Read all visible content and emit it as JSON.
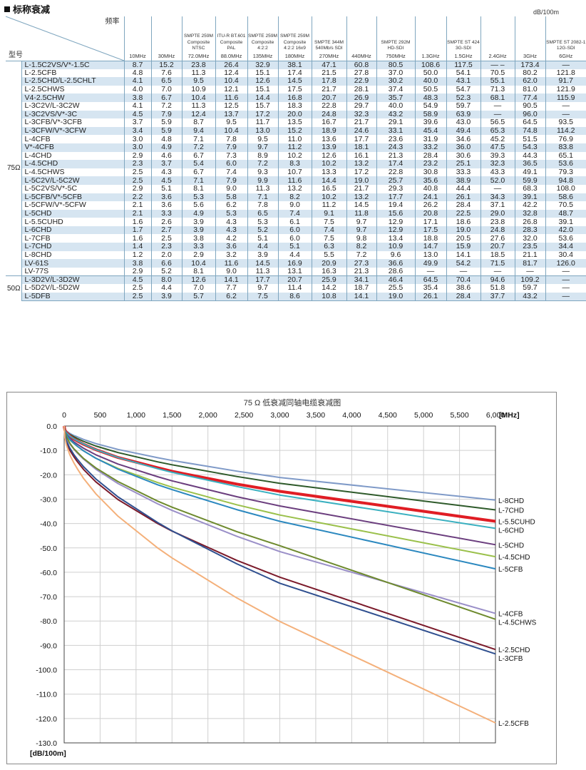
{
  "header": {
    "title": "标称衰减",
    "unit": "dB/100m"
  },
  "table": {
    "corner_top": "频率",
    "corner_bottom": "型号",
    "columns": [
      {
        "standard": "",
        "freq": "10MHz"
      },
      {
        "standard": "",
        "freq": "30MHz"
      },
      {
        "standard": "SMPTE 259M Composite NTSC",
        "freq": "72.0MHz"
      },
      {
        "standard": "ITU-R BT.601 Composite PAL",
        "freq": "88.0MHz"
      },
      {
        "standard": "SMPTE 259M Composite 4:2:2",
        "freq": "135MHz"
      },
      {
        "standard": "SMPTE 259M Composite 4:2:2 16x9",
        "freq": "180MHz"
      },
      {
        "standard": "SMPTE 344M 540Mb/s SDI",
        "freq": "270MHz"
      },
      {
        "standard": "",
        "freq": "440MHz"
      },
      {
        "standard": "SMPTE 292M HD-SDI",
        "freq": "750MHz"
      },
      {
        "standard": "",
        "freq": "1.3GHz"
      },
      {
        "standard": "SMPTE ST 424 3G-SDI",
        "freq": "1.5GHz"
      },
      {
        "standard": "",
        "freq": "2.4GHz"
      },
      {
        "standard": "",
        "freq": "3GHz"
      },
      {
        "standard": "SMPTE ST 2082-1 12G-SDI",
        "freq": "6GHz"
      }
    ],
    "groups": [
      {
        "impedance": "75Ω",
        "rows": [
          {
            "model": "L-1.5C2VS/V*-1.5C",
            "values": [
              "8.7",
              "15.2",
              "23.8",
              "26.4",
              "32.9",
              "38.1",
              "47.1",
              "60.8",
              "80.5",
              "108.6",
              "117.5",
              "— –",
              "173.4",
              "—"
            ]
          },
          {
            "model": "L-2.5CFB",
            "values": [
              "4.8",
              "7.6",
              "11.3",
              "12.4",
              "15.1",
              "17.4",
              "21.5",
              "27.8",
              "37.0",
              "50.0",
              "54.1",
              "70.5",
              "80.2",
              "121.8"
            ]
          },
          {
            "model": "L-2.5CHD/L-2.5CHLT",
            "values": [
              "4.1",
              "6.5",
              "9.5",
              "10.4",
              "12.6",
              "14.5",
              "17.8",
              "22.9",
              "30.2",
              "40.0",
              "43.1",
              "55.1",
              "62.0",
              "91.7"
            ]
          },
          {
            "model": "L-2.5CHWS",
            "values": [
              "4.0",
              "7.0",
              "10.9",
              "12.1",
              "15.1",
              "17.5",
              "21.7",
              "28.1",
              "37.4",
              "50.5",
              "54.7",
              "71.3",
              "81.0",
              "121.9"
            ]
          },
          {
            "model": "V4-2.5CHW",
            "values": [
              "3.8",
              "6.7",
              "10.4",
              "11.6",
              "14.4",
              "16.8",
              "20.7",
              "26.9",
              "35.7",
              "48.3",
              "52.3",
              "68.1",
              "77.4",
              "115.9"
            ]
          },
          {
            "model": "L-3C2V/L-3C2W",
            "values": [
              "4.1",
              "7.2",
              "11.3",
              "12.5",
              "15.7",
              "18.3",
              "22.8",
              "29.7",
              "40.0",
              "54.9",
              "59.7",
              "—",
              "90.5",
              "—"
            ]
          },
          {
            "model": "L-3C2VS/V*-3C",
            "values": [
              "4.5",
              "7.9",
              "12.4",
              "13.7",
              "17.2",
              "20.0",
              "24.8",
              "32.3",
              "43.2",
              "58.9",
              "63.9",
              "—",
              "96.0",
              "—"
            ]
          },
          {
            "model": "L-3CFB/V*-3CFB",
            "values": [
              "3.7",
              "5.9",
              "8.7",
              "9.5",
              "11.7",
              "13.5",
              "16.7",
              "21.7",
              "29.1",
              "39.6",
              "43.0",
              "56.5",
              "64.5",
              "93.5"
            ]
          },
          {
            "model": "L-3CFW/V*-3CFW",
            "values": [
              "3.4",
              "5.9",
              "9.4",
              "10.4",
              "13.0",
              "15.2",
              "18.9",
              "24.6",
              "33.1",
              "45.4",
              "49.4",
              "65.3",
              "74.8",
              "114.2"
            ]
          },
          {
            "model": "L-4CFB",
            "values": [
              "3.0",
              "4.8",
              "7.1",
              "7.8",
              "9.5",
              "11.0",
              "13.6",
              "17.7",
              "23.6",
              "31.9",
              "34.6",
              "45.2",
              "51.5",
              "76.9"
            ]
          },
          {
            "model": "V*-4CFB",
            "values": [
              "3.0",
              "4.9",
              "7.2",
              "7.9",
              "9.7",
              "11.2",
              "13.9",
              "18.1",
              "24.3",
              "33.2",
              "36.0",
              "47.5",
              "54.3",
              "83.8"
            ]
          },
          {
            "model": "L-4CHD",
            "values": [
              "2.9",
              "4.6",
              "6.7",
              "7.3",
              "8.9",
              "10.2",
              "12.6",
              "16.1",
              "21.3",
              "28.4",
              "30.6",
              "39.3",
              "44.3",
              "65.1"
            ]
          },
          {
            "model": "L-4.5CHD",
            "values": [
              "2.3",
              "3.7",
              "5.4",
              "6.0",
              "7.2",
              "8.3",
              "10.2",
              "13.2",
              "17.4",
              "23.2",
              "25.1",
              "32.3",
              "36.5",
              "53.6"
            ]
          },
          {
            "model": "L-4.5CHWS",
            "values": [
              "2.5",
              "4.3",
              "6.7",
              "7.4",
              "9.3",
              "10.7",
              "13.3",
              "17.2",
              "22.8",
              "30.8",
              "33.3",
              "43.3",
              "49.1",
              "79.3"
            ]
          },
          {
            "model": "L-5C2V/L-5C2W",
            "values": [
              "2.5",
              "4.5",
              "7.1",
              "7.9",
              "9.9",
              "11.6",
              "14.4",
              "19.0",
              "25.7",
              "35.6",
              "38.9",
              "52.0",
              "59.9",
              "94.8"
            ]
          },
          {
            "model": "L-5C2VS/V*-5C",
            "values": [
              "2.9",
              "5.1",
              "8.1",
              "9.0",
              "11.3",
              "13.2",
              "16.5",
              "21.7",
              "29.3",
              "40.8",
              "44.4",
              "—",
              "68.3",
              "108.0"
            ]
          },
          {
            "model": "L-5CFB/V*-5CFB",
            "values": [
              "2.2",
              "3.6",
              "5.3",
              "5.8",
              "7.1",
              "8.2",
              "10.2",
              "13.2",
              "17.7",
              "24.1",
              "26.1",
              "34.3",
              "39.1",
              "58.6"
            ]
          },
          {
            "model": "L-5CFW/V*-5CFW",
            "values": [
              "2.1",
              "3.6",
              "5.6",
              "6.2",
              "7.8",
              "9.0",
              "11.2",
              "14.5",
              "19.4",
              "26.2",
              "28.4",
              "37.1",
              "42.2",
              "70.5"
            ]
          },
          {
            "model": "L-5CHD",
            "values": [
              "2.1",
              "3.3",
              "4.9",
              "5.3",
              "6.5",
              "7.4",
              "9.1",
              "11.8",
              "15.6",
              "20.8",
              "22.5",
              "29.0",
              "32.8",
              "48.7"
            ]
          },
          {
            "model": "L-5.5CUHD",
            "values": [
              "1.6",
              "2.6",
              "3.9",
              "4.3",
              "5.3",
              "6.1",
              "7.5",
              "9.7",
              "12.9",
              "17.1",
              "18.6",
              "23.8",
              "26.8",
              "39.1"
            ]
          },
          {
            "model": "L-6CHD",
            "values": [
              "1.7",
              "2.7",
              "3.9",
              "4.3",
              "5.2",
              "6.0",
              "7.4",
              "9.7",
              "12.9",
              "17.5",
              "19.0",
              "24.8",
              "28.3",
              "42.0"
            ]
          },
          {
            "model": "L-7CFB",
            "values": [
              "1.6",
              "2.5",
              "3.8",
              "4.2",
              "5.1",
              "6.0",
              "7.5",
              "9.8",
              "13.4",
              "18.8",
              "20.5",
              "27.6",
              "32.0",
              "53.6"
            ]
          },
          {
            "model": "L-7CHD",
            "values": [
              "1.4",
              "2.3",
              "3.3",
              "3.6",
              "4.4",
              "5.1",
              "6.3",
              "8.2",
              "10.9",
              "14.7",
              "15.9",
              "20.7",
              "23.5",
              "34.4"
            ]
          },
          {
            "model": "L-8CHD",
            "values": [
              "1.2",
              "2.0",
              "2.9",
              "3.2",
              "3.9",
              "4.4",
              "5.5",
              "7.2",
              "9.6",
              "13.0",
              "14.1",
              "18.5",
              "21.1",
              "30.4"
            ]
          },
          {
            "model": "LV-61S",
            "values": [
              "3.8",
              "6.6",
              "10.4",
              "11.6",
              "14.5",
              "16.9",
              "20.9",
              "27.3",
              "36.6",
              "49.9",
              "54.2",
              "71.5",
              "81.7",
              "126.0"
            ]
          },
          {
            "model": "LV-77S",
            "values": [
              "2.9",
              "5.2",
              "8.1",
              "9.0",
              "11.3",
              "13.1",
              "16.3",
              "21.3",
              "28.6",
              "—",
              "—",
              "—",
              "—",
              "—"
            ]
          }
        ]
      },
      {
        "impedance": "50Ω",
        "rows": [
          {
            "model": "L-3D2V/L-3D2W",
            "values": [
              "4.5",
              "8.0",
              "12.6",
              "14.1",
              "17.7",
              "20.7",
              "25.9",
              "34.1",
              "46.4",
              "64.5",
              "70.4",
              "94.6",
              "109.2",
              "—"
            ]
          },
          {
            "model": "L-5D2V/L-5D2W",
            "values": [
              "2.5",
              "4.4",
              "7.0",
              "7.7",
              "9.7",
              "11.4",
              "14.2",
              "18.7",
              "25.5",
              "35.4",
              "38.6",
              "51.8",
              "59.7",
              "—"
            ]
          },
          {
            "model": "L-5DFB",
            "values": [
              "2.5",
              "3.9",
              "5.7",
              "6.2",
              "7.5",
              "8.6",
              "10.8",
              "14.1",
              "19.0",
              "26.1",
              "28.4",
              "37.7",
              "43.2",
              "—"
            ]
          }
        ]
      }
    ]
  },
  "chart_data": {
    "type": "line",
    "title": "75 Ω 低衰减同轴电缆衰减图",
    "xlabel": "[MHz]",
    "ylabel": "[dB/100m]",
    "xlim": [
      0,
      6000
    ],
    "ylim": [
      -130,
      0
    ],
    "xticks": [
      "0",
      "500",
      "1,000",
      "1,500",
      "2,000",
      "2,500",
      "3,000",
      "3,500",
      "4,000",
      "4,500",
      "5,000",
      "5,500",
      "6,000"
    ],
    "yticks": [
      "0.0",
      "-10.0",
      "-20.0",
      "-30.0",
      "-40.0",
      "-50.0",
      "-60.0",
      "-70.0",
      "-80.0",
      "-90.0",
      "-100.0",
      "-110.0",
      "-120.0",
      "-130.0"
    ],
    "grid": true,
    "x": [
      10,
      30,
      72,
      88,
      135,
      180,
      270,
      440,
      750,
      1300,
      1500,
      2400,
      3000,
      6000
    ],
    "series": [
      {
        "name": "L-8CHD",
        "color": "#7f9ac8",
        "values": [
          -1.2,
          -2.0,
          -2.9,
          -3.2,
          -3.9,
          -4.4,
          -5.5,
          -7.2,
          -9.6,
          -13.0,
          -14.1,
          -18.5,
          -21.1,
          -30.4
        ]
      },
      {
        "name": "L-7CHD",
        "color": "#2e5a2a",
        "values": [
          -1.4,
          -2.3,
          -3.3,
          -3.6,
          -4.4,
          -5.1,
          -6.3,
          -8.2,
          -10.9,
          -14.7,
          -15.9,
          -20.7,
          -23.5,
          -34.4
        ]
      },
      {
        "name": "L-5.5CUHD",
        "color": "#e01d24",
        "values": [
          -1.6,
          -2.6,
          -3.9,
          -4.3,
          -5.3,
          -6.1,
          -7.5,
          -9.7,
          -12.9,
          -17.1,
          -18.6,
          -23.8,
          -26.8,
          -39.1
        ]
      },
      {
        "name": "L-6CHD",
        "color": "#3ab0c0",
        "values": [
          -1.7,
          -2.7,
          -3.9,
          -4.3,
          -5.2,
          -6.0,
          -7.4,
          -9.7,
          -12.9,
          -17.5,
          -19.0,
          -24.8,
          -28.3,
          -42.0
        ]
      },
      {
        "name": "L-5CHD",
        "color": "#6b3e7e",
        "values": [
          -2.1,
          -3.3,
          -4.9,
          -5.3,
          -6.5,
          -7.4,
          -9.1,
          -11.8,
          -15.6,
          -20.8,
          -22.5,
          -29.0,
          -32.8,
          -48.7
        ]
      },
      {
        "name": "L-4.5CHD",
        "color": "#9ac04a",
        "values": [
          -2.3,
          -3.7,
          -5.4,
          -6.0,
          -7.2,
          -8.3,
          -10.2,
          -13.2,
          -17.4,
          -23.2,
          -25.1,
          -32.3,
          -36.5,
          -53.6
        ]
      },
      {
        "name": "L-5CFB",
        "color": "#2b88bf",
        "values": [
          -2.2,
          -3.6,
          -5.3,
          -5.8,
          -7.1,
          -8.2,
          -10.2,
          -13.2,
          -17.7,
          -24.1,
          -26.1,
          -34.3,
          -39.1,
          -58.6
        ]
      },
      {
        "name": "L-4CFB",
        "color": "#9a8fc8",
        "values": [
          -3.0,
          -4.8,
          -7.1,
          -7.8,
          -9.5,
          -11.0,
          -13.6,
          -17.7,
          -23.6,
          -31.9,
          -34.6,
          -45.2,
          -51.5,
          -76.9
        ]
      },
      {
        "name": "L-4.5CHWS",
        "color": "#6e8a2e",
        "values": [
          -2.5,
          -4.3,
          -6.7,
          -7.4,
          -9.3,
          -10.7,
          -13.3,
          -17.2,
          -22.8,
          -30.8,
          -33.3,
          -43.3,
          -49.1,
          -79.3
        ]
      },
      {
        "name": "L-2.5CHD",
        "color": "#7b1a2a",
        "values": [
          -4.1,
          -6.5,
          -9.5,
          -10.4,
          -12.6,
          -14.5,
          -17.8,
          -22.9,
          -30.2,
          -40.0,
          -43.1,
          -55.1,
          -62.0,
          -91.7
        ]
      },
      {
        "name": "L-3CFB",
        "color": "#2f4f8f",
        "values": [
          -3.7,
          -5.9,
          -8.7,
          -9.5,
          -11.7,
          -13.5,
          -16.7,
          -21.7,
          -29.1,
          -39.6,
          -43.0,
          -56.5,
          -64.5,
          -93.5
        ]
      },
      {
        "name": "L-2.5CFB",
        "color": "#f4b07a",
        "values": [
          -4.8,
          -7.6,
          -11.3,
          -12.4,
          -15.1,
          -17.4,
          -21.5,
          -27.8,
          -37.0,
          -50.0,
          -54.1,
          -70.5,
          -80.2,
          -121.8
        ]
      }
    ]
  }
}
